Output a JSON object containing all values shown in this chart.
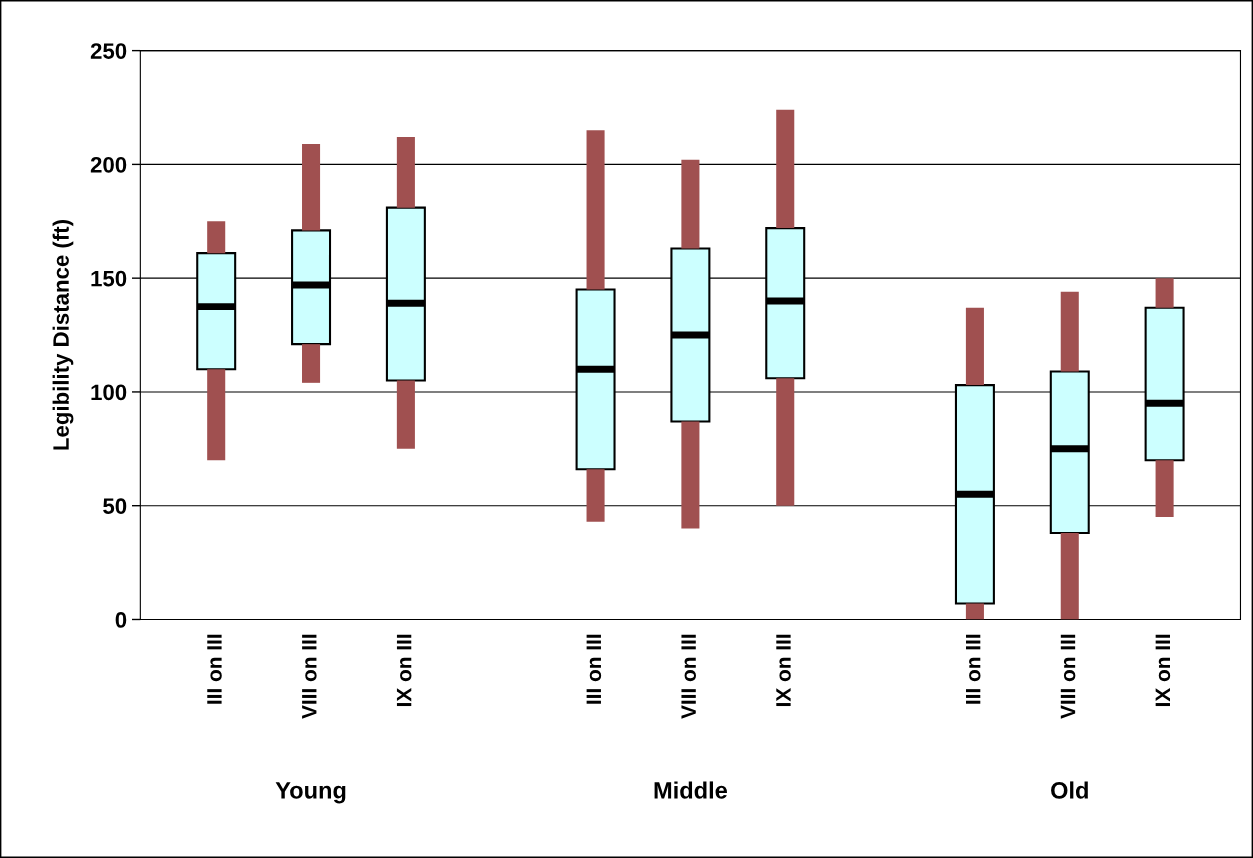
{
  "chart_data": {
    "type": "box",
    "ylabel": "Legibility Distance (ft)",
    "categories": [
      "III on III",
      "VIII on III",
      "IX on III",
      null,
      "III on III",
      "VIII on III",
      "IX on III",
      null,
      "III on III",
      "VIII on III",
      "IX on III"
    ],
    "annotations": [
      "Young",
      "Middle",
      "Old"
    ],
    "boxes": [
      {
        "low": 70,
        "q1": 110,
        "median": 137.5,
        "q3": 161,
        "high": 175
      },
      {
        "low": 104,
        "q1": 121,
        "median": 147,
        "q3": 171,
        "high": 209
      },
      {
        "low": 75,
        "q1": 105,
        "median": 139,
        "q3": 181,
        "high": 212
      },
      null,
      {
        "low": 43,
        "q1": 66,
        "median": 110,
        "q3": 145,
        "high": 215
      },
      {
        "low": 40,
        "q1": 87,
        "median": 125,
        "q3": 163,
        "high": 202
      },
      {
        "low": 50,
        "q1": 106,
        "median": 140,
        "q3": 172,
        "high": 224
      },
      null,
      {
        "low": 0,
        "q1": 7,
        "median": 55,
        "q3": 103,
        "high": 137
      },
      {
        "low": 0,
        "q1": 38,
        "median": 75,
        "q3": 109,
        "high": 144
      },
      {
        "low": 45,
        "q1": 70,
        "median": 95,
        "q3": 137,
        "high": 150
      }
    ],
    "color": "#ccffff",
    "ylim": [
      0,
      250
    ],
    "yticks": [
      0,
      50,
      100,
      150,
      200,
      250
    ],
    "grid": "y"
  }
}
